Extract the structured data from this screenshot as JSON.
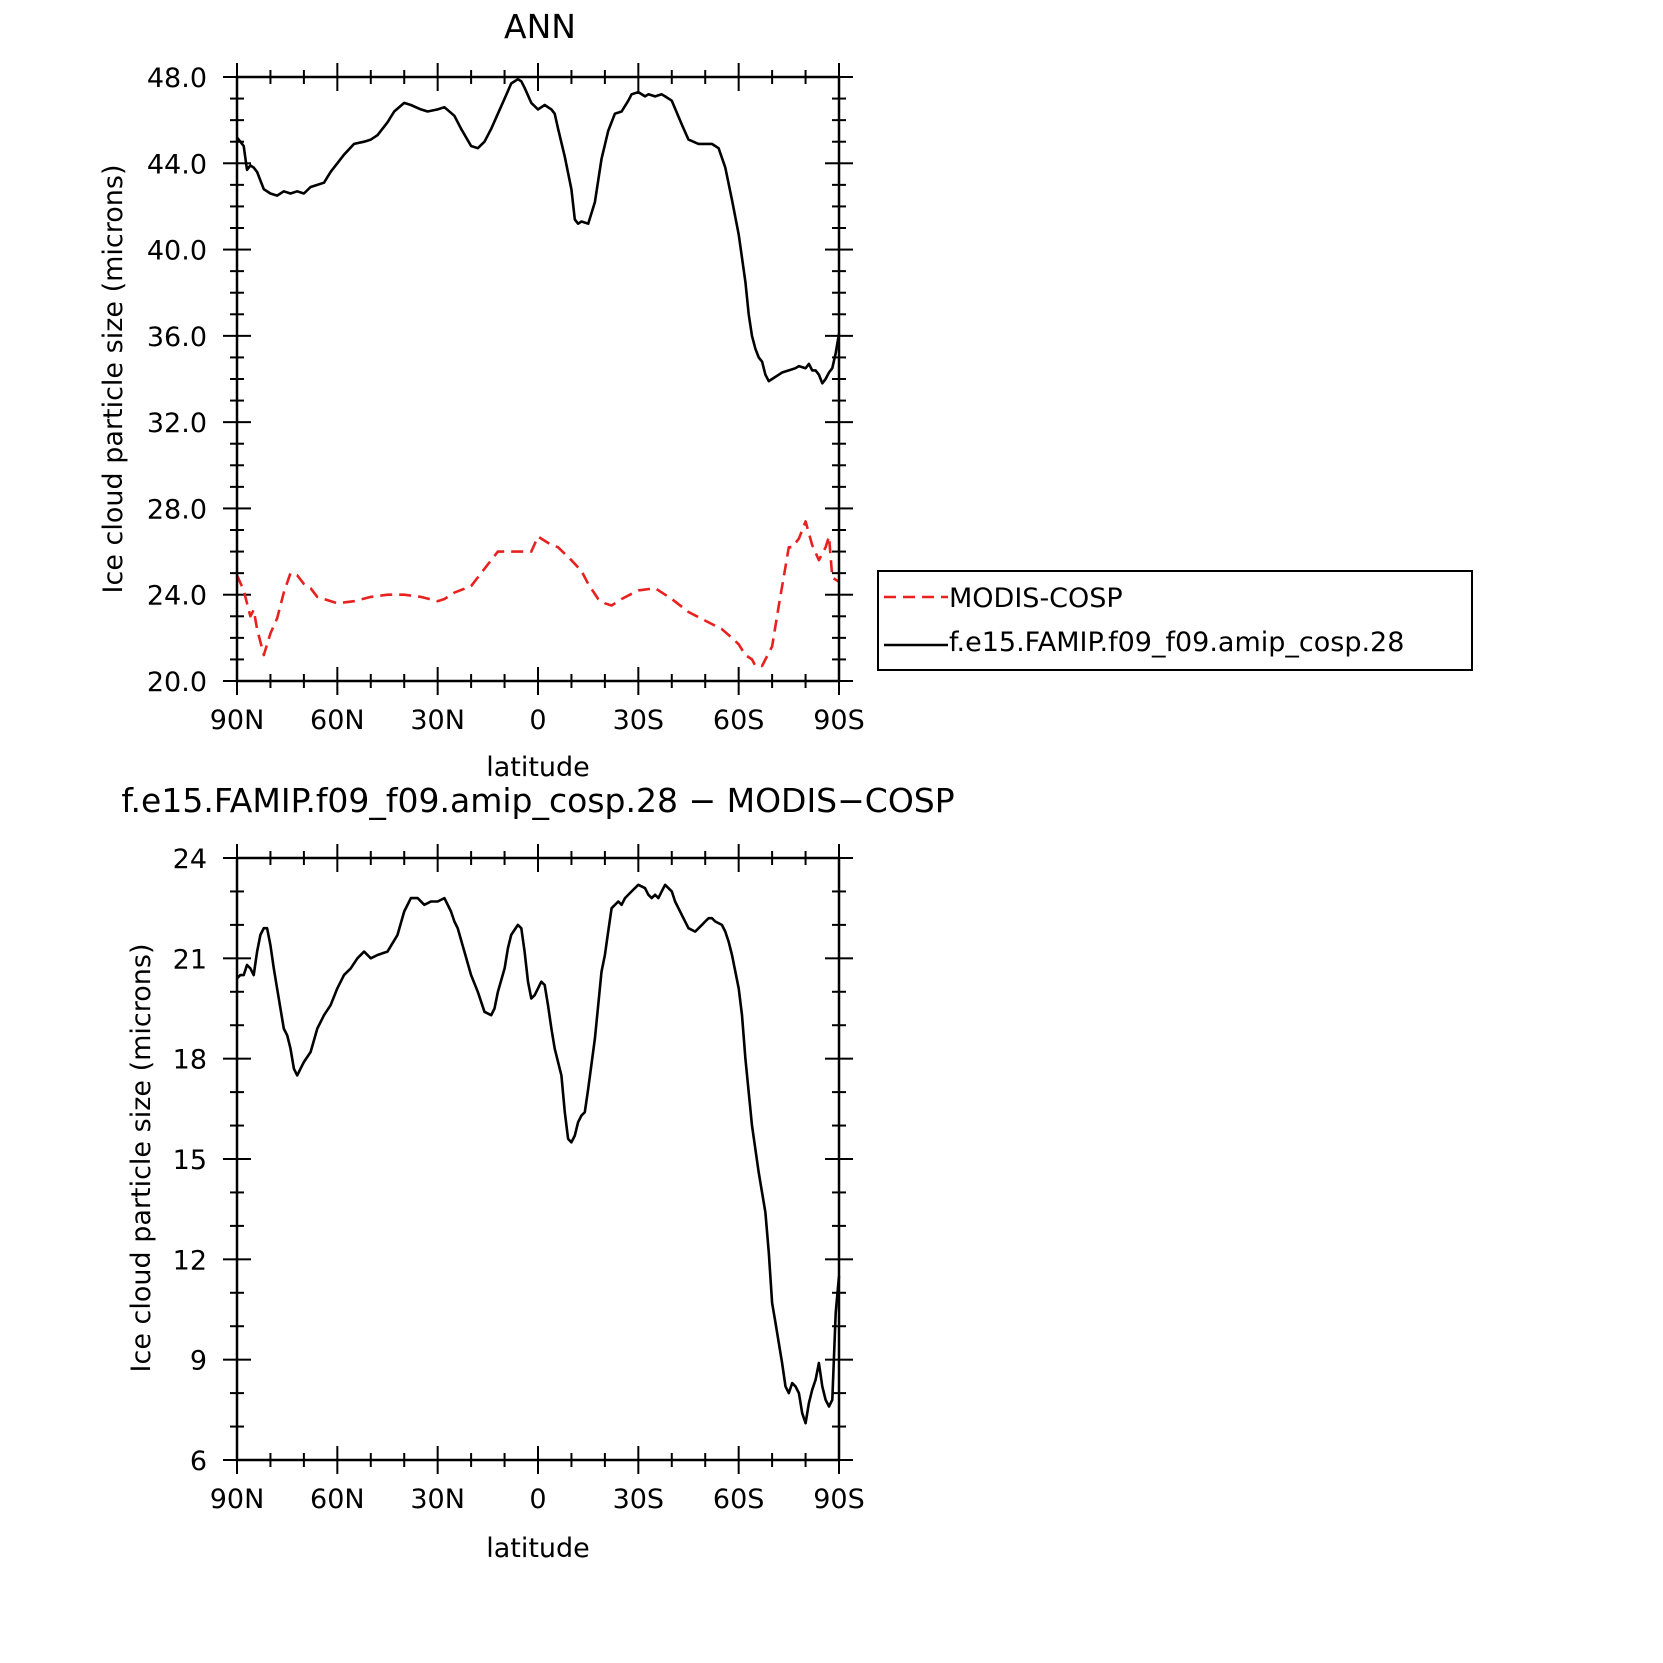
{
  "chart_data": [
    {
      "type": "line",
      "title": "ANN",
      "xlabel": "latitude",
      "ylabel": "Ice cloud particle size (microns)",
      "xlim": [
        90,
        -90
      ],
      "ylim": [
        20.0,
        48.0
      ],
      "x_ticks": [
        90,
        60,
        30,
        0,
        -30,
        -60,
        -90
      ],
      "x_tick_labels": [
        "90N",
        "60N",
        "30N",
        "0",
        "30S",
        "60S",
        "90S"
      ],
      "y_ticks": [
        20,
        24,
        28,
        32,
        36,
        40,
        44,
        48
      ],
      "y_tick_labels": [
        "20.0",
        "24.0",
        "28.0",
        "32.0",
        "36.0",
        "40.0",
        "44.0",
        "48.0"
      ],
      "legend_position": "right",
      "series": [
        {
          "name": "MODIS-COSP",
          "color": "#e8211f",
          "dash": "dashed",
          "x": [
            90,
            88,
            86,
            85,
            84,
            82,
            80,
            78,
            76,
            74,
            72,
            70,
            68,
            66,
            64,
            60,
            55,
            50,
            45,
            40,
            35,
            30,
            28,
            25,
            20,
            15,
            12,
            10,
            5,
            2,
            0,
            -3,
            -6,
            -10,
            -13,
            -15,
            -18,
            -20,
            -22,
            -25,
            -30,
            -35,
            -40,
            -45,
            -50,
            -55,
            -58,
            -60,
            -62,
            -64,
            -65,
            -67,
            -68,
            -70,
            -72,
            -74,
            -75,
            -76,
            -78,
            -80,
            -82,
            -84,
            -86,
            -87,
            -88,
            -90
          ],
          "y": [
            24.9,
            24.2,
            23.0,
            23.3,
            22.4,
            21.2,
            22.2,
            22.9,
            24.1,
            25.0,
            24.9,
            24.5,
            24.3,
            23.9,
            23.8,
            23.6,
            23.7,
            23.9,
            24.0,
            24.0,
            23.9,
            23.7,
            23.8,
            24.1,
            24.4,
            25.4,
            26.0,
            26.0,
            26.0,
            26.0,
            26.7,
            26.4,
            26.2,
            25.6,
            25.1,
            24.5,
            23.8,
            23.6,
            23.5,
            23.8,
            24.2,
            24.3,
            23.8,
            23.2,
            22.8,
            22.4,
            22.0,
            21.7,
            21.2,
            21.0,
            20.7,
            20.7,
            21.0,
            21.6,
            23.5,
            25.3,
            26.2,
            26.2,
            26.6,
            27.4,
            26.3,
            25.6,
            26.2,
            26.7,
            24.8,
            24.6
          ]
        },
        {
          "name": "f.e15.FAMIP.f09_f09.amip_cosp.28",
          "color": "#000000",
          "dash": "solid",
          "x": [
            90,
            89,
            88,
            87,
            86,
            85,
            84,
            83,
            82,
            80,
            78,
            76,
            74,
            72,
            70,
            68,
            66,
            64,
            62,
            60,
            58,
            55,
            52,
            50,
            48,
            45,
            43,
            40,
            38,
            35,
            33,
            30,
            28,
            25,
            23,
            20,
            18,
            16,
            14,
            12,
            10,
            8,
            6,
            5,
            4,
            2,
            0,
            -2,
            -4,
            -5,
            -6,
            -8,
            -10,
            -11,
            -12,
            -13,
            -15,
            -17,
            -19,
            -21,
            -23,
            -25,
            -27,
            -28,
            -30,
            -32,
            -33,
            -35,
            -37,
            -38,
            -40,
            -43,
            -45,
            -48,
            -50,
            -52,
            -54,
            -56,
            -58,
            -60,
            -62,
            -63,
            -64,
            -65,
            -66,
            -67,
            -68,
            -69,
            -70,
            -72,
            -73,
            -75,
            -77,
            -78,
            -80,
            -81,
            -82,
            -83,
            -84,
            -85,
            -86,
            -87,
            -88,
            -89,
            -90
          ],
          "y": [
            45.2,
            45.0,
            44.8,
            43.7,
            43.9,
            43.8,
            43.6,
            43.2,
            42.8,
            42.6,
            42.5,
            42.7,
            42.6,
            42.7,
            42.6,
            42.9,
            43.0,
            43.1,
            43.6,
            44.0,
            44.4,
            44.9,
            45.0,
            45.1,
            45.3,
            45.9,
            46.4,
            46.8,
            46.7,
            46.5,
            46.4,
            46.5,
            46.6,
            46.2,
            45.6,
            44.8,
            44.7,
            45.0,
            45.6,
            46.3,
            47.0,
            47.7,
            47.9,
            47.8,
            47.5,
            46.8,
            46.5,
            46.7,
            46.5,
            46.3,
            45.6,
            44.3,
            42.8,
            41.4,
            41.2,
            41.3,
            41.2,
            42.2,
            44.2,
            45.5,
            46.3,
            46.4,
            46.9,
            47.2,
            47.3,
            47.1,
            47.2,
            47.1,
            47.2,
            47.1,
            46.9,
            45.8,
            45.1,
            44.9,
            44.9,
            44.9,
            44.7,
            43.8,
            42.3,
            40.7,
            38.5,
            37.0,
            36.0,
            35.4,
            35.0,
            34.8,
            34.2,
            33.9,
            34.0,
            34.2,
            34.3,
            34.4,
            34.5,
            34.6,
            34.5,
            34.7,
            34.4,
            34.4,
            34.2,
            33.8,
            34.0,
            34.3,
            34.5,
            35.2,
            36.1
          ]
        }
      ]
    },
    {
      "type": "line",
      "title": "f.e15.FAMIP.f09_f09.amip_cosp.28 − MODIS−COSP",
      "xlabel": "latitude",
      "ylabel": "Ice cloud particle size (microns)",
      "xlim": [
        90,
        -90
      ],
      "ylim": [
        6,
        24
      ],
      "x_ticks": [
        90,
        60,
        30,
        0,
        -30,
        -60,
        -90
      ],
      "x_tick_labels": [
        "90N",
        "60N",
        "30N",
        "0",
        "30S",
        "60S",
        "90S"
      ],
      "y_ticks": [
        6,
        9,
        12,
        15,
        18,
        21,
        24
      ],
      "y_tick_labels": [
        "6",
        "9",
        "12",
        "15",
        "18",
        "21",
        "24"
      ],
      "series": [
        {
          "color": "#000000",
          "dash": "solid",
          "x": [
            90,
            89,
            88,
            87,
            86,
            85,
            84,
            83,
            82,
            81,
            80,
            79,
            78,
            76,
            75,
            74,
            73,
            72,
            71,
            70,
            68,
            66,
            64,
            62,
            60,
            58,
            56,
            54,
            52,
            50,
            48,
            45,
            42,
            40,
            38,
            36,
            34,
            32,
            30,
            28,
            26,
            25,
            24,
            22,
            20,
            18,
            16,
            14,
            13,
            12,
            10,
            9,
            8,
            6,
            5,
            4,
            3,
            2,
            1,
            0,
            -1,
            -2,
            -3,
            -4,
            -5,
            -7,
            -8,
            -9,
            -10,
            -11,
            -12,
            -13,
            -14,
            -15,
            -17,
            -18,
            -19,
            -20,
            -21,
            -22,
            -24,
            -25,
            -26,
            -28,
            -30,
            -32,
            -33,
            -34,
            -35,
            -36,
            -37,
            -38,
            -39,
            -40,
            -41,
            -43,
            -45,
            -47,
            -49,
            -50,
            -51,
            -52,
            -53,
            -55,
            -56,
            -57,
            -58,
            -60,
            -61,
            -62,
            -64,
            -66,
            -68,
            -69,
            -70,
            -71,
            -72,
            -73,
            -74,
            -75,
            -76,
            -77,
            -78,
            -79,
            -80,
            -81,
            -82,
            -83,
            -84,
            -85,
            -86,
            -87,
            -88,
            -89,
            -90
          ],
          "y": [
            20.4,
            20.5,
            20.5,
            20.8,
            20.7,
            20.5,
            21.2,
            21.7,
            21.9,
            21.9,
            21.4,
            20.7,
            20.1,
            18.9,
            18.7,
            18.3,
            17.7,
            17.5,
            17.7,
            17.9,
            18.2,
            18.9,
            19.3,
            19.6,
            20.1,
            20.5,
            20.7,
            21.0,
            21.2,
            21.0,
            21.1,
            21.2,
            21.7,
            22.4,
            22.8,
            22.8,
            22.6,
            22.7,
            22.7,
            22.8,
            22.4,
            22.1,
            21.9,
            21.2,
            20.5,
            20.0,
            19.4,
            19.3,
            19.5,
            20.0,
            20.7,
            21.3,
            21.7,
            22.0,
            21.9,
            21.2,
            20.3,
            19.8,
            19.9,
            20.1,
            20.3,
            20.2,
            19.6,
            18.9,
            18.3,
            17.5,
            16.4,
            15.6,
            15.5,
            15.7,
            16.1,
            16.3,
            16.4,
            17.1,
            18.6,
            19.6,
            20.6,
            21.1,
            21.8,
            22.5,
            22.7,
            22.6,
            22.8,
            23.0,
            23.2,
            23.1,
            22.9,
            22.8,
            22.9,
            22.8,
            23.0,
            23.2,
            23.1,
            23.0,
            22.7,
            22.3,
            21.9,
            21.8,
            22.0,
            22.1,
            22.2,
            22.2,
            22.1,
            22.0,
            21.8,
            21.5,
            21.1,
            20.1,
            19.3,
            18.0,
            16.0,
            14.6,
            13.4,
            12.2,
            10.7,
            10.1,
            9.5,
            8.9,
            8.2,
            8.0,
            8.3,
            8.2,
            8.0,
            7.4,
            7.1,
            7.7,
            8.1,
            8.4,
            8.9,
            8.2,
            7.8,
            7.6,
            7.8,
            10.4,
            11.5
          ]
        }
      ]
    }
  ]
}
